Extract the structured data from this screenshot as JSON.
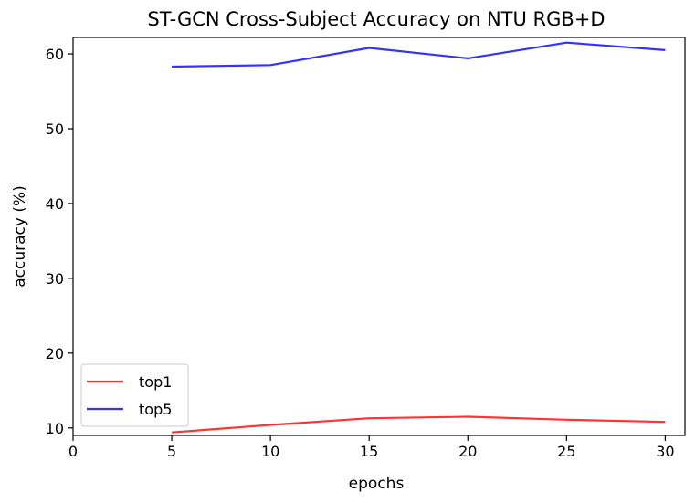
{
  "chart_data": {
    "type": "line",
    "title": "ST-GCN Cross-Subject Accuracy on NTU RGB+D",
    "xlabel": "epochs",
    "ylabel": "accuracy (%)",
    "x": [
      5,
      10,
      15,
      20,
      25,
      30
    ],
    "xlim": [
      0,
      31
    ],
    "ylim": [
      9,
      62.2
    ],
    "xticks": [
      0,
      5,
      10,
      15,
      20,
      25,
      30
    ],
    "yticks": [
      10,
      20,
      30,
      40,
      50,
      60
    ],
    "grid": false,
    "legend_position": "lower-left",
    "series": [
      {
        "name": "top1",
        "color": "#ff3333",
        "values": [
          9.4,
          10.4,
          11.3,
          11.5,
          11.1,
          10.8
        ]
      },
      {
        "name": "top5",
        "color": "#3333ff",
        "values": [
          58.3,
          58.5,
          60.8,
          59.4,
          61.5,
          60.5
        ]
      }
    ]
  }
}
